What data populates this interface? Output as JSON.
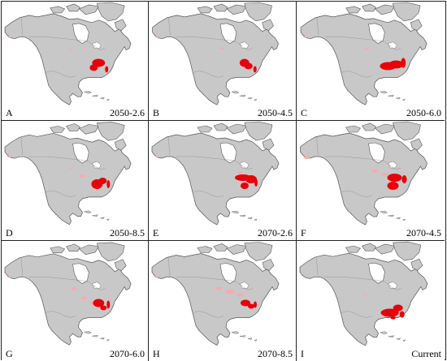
{
  "colors": {
    "land": "#c8c8c8",
    "coast": "#555555",
    "border": "#8a8a8a",
    "suitable_high": "#e8000a",
    "suitable_low": "#f7aab0"
  },
  "panels": [
    {
      "letter": "A",
      "scenario": "2050-2.6",
      "icon": "north-america-map"
    },
    {
      "letter": "B",
      "scenario": "2050-4.5",
      "icon": "north-america-map"
    },
    {
      "letter": "C",
      "scenario": "2050-6.0",
      "icon": "north-america-map"
    },
    {
      "letter": "D",
      "scenario": "2050-8.5",
      "icon": "north-america-map"
    },
    {
      "letter": "E",
      "scenario": "2070-2.6",
      "icon": "north-america-map"
    },
    {
      "letter": "F",
      "scenario": "2070-4.5",
      "icon": "north-america-map"
    },
    {
      "letter": "G",
      "scenario": "2070-6.0",
      "icon": "north-america-map"
    },
    {
      "letter": "H",
      "scenario": "2070-8.5",
      "icon": "north-america-map"
    },
    {
      "letter": "I",
      "scenario": "Current",
      "icon": "north-america-map"
    }
  ]
}
